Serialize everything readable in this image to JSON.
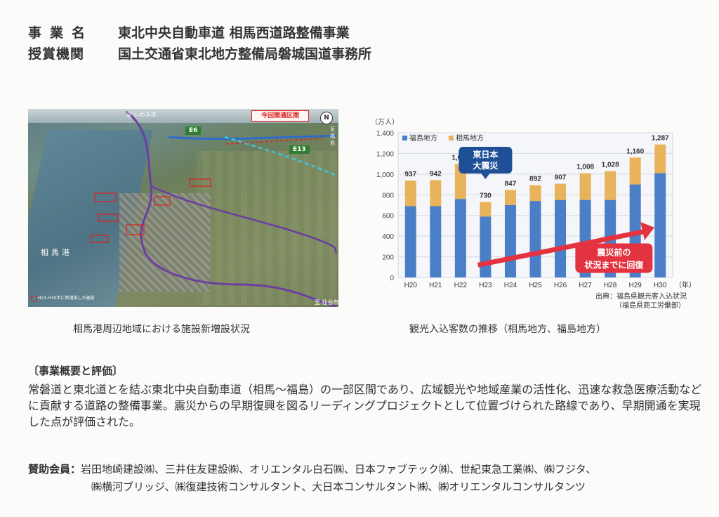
{
  "header": {
    "project_label": "事業名",
    "project_name": "東北中央自動車道 相馬西道路整備事業",
    "award_label": "授賞機関",
    "award_org": "国土交通省東北地方整備局磐城国道事務所"
  },
  "photo": {
    "caption": "相馬港周辺地域における施設新増設状況",
    "to_iwaki": "至 いわき市",
    "to_fukushima": "至 福島",
    "to_sendai": "至 仙台市",
    "port_label": "相馬港",
    "open_section": "今回開通区間",
    "e6": "E6",
    "e13": "E13",
    "legend": "H23-H30年に新増設した施設",
    "north": "N"
  },
  "chart": {
    "caption": "観光入込客数の推移（相馬地方、福島地方）",
    "source_line1": "出典：福島県観光客入込状況",
    "source_line2": "（福島県商工労働部）",
    "callout_quake_1": "東日本",
    "callout_quake_2": "大震災",
    "callout_recovery_1": "震災前の",
    "callout_recovery_2": "状況までに回復",
    "colors": {
      "fukushima": "#4a7fc8",
      "soma": "#e8b35a",
      "arrow": "#e33340",
      "callout": "#1f4f96"
    }
  },
  "chart_data": {
    "type": "bar",
    "stacked": true,
    "ylabel": "（万人）",
    "xlabel": "（年）",
    "ylim": [
      0,
      1400
    ],
    "yticks": [
      0,
      200,
      400,
      600,
      800,
      1000,
      1200,
      1400
    ],
    "categories": [
      "H20",
      "H21",
      "H22",
      "H23",
      "H24",
      "H25",
      "H26",
      "H27",
      "H28",
      "H29",
      "H30"
    ],
    "totals": [
      937,
      942,
      1097,
      730,
      847,
      892,
      907,
      1008,
      1028,
      1160,
      1287
    ],
    "series": [
      {
        "name": "福島地方",
        "values": [
          690,
          690,
          760,
          590,
          700,
          740,
          750,
          750,
          750,
          900,
          1010
        ]
      },
      {
        "name": "相馬地方",
        "values": [
          247,
          252,
          337,
          140,
          147,
          152,
          157,
          258,
          278,
          260,
          277
        ]
      }
    ],
    "legend_position": "top-left",
    "grid": true
  },
  "summary": {
    "title": "〔事業概要と評価〕",
    "text": "常磐道と東北道とを結ぶ東北中央自動車道（相馬～福島）の一部区間であり、広域観光や地域産業の活性化、迅速な救急医療活動などに貢献する道路の整備事業。震災からの早期復興を図るリーディングプロジェクトとして位置づけられた路線であり、早期開通を実現した点が評価された。"
  },
  "sponsors": {
    "label": "賛助会員：",
    "line1": "岩田地崎建設㈱、三井住友建設㈱、オリエンタル白石㈱、日本ファブテック㈱、世紀東急工業㈱、㈱フジタ、",
    "line2": "㈱横河ブリッジ、㈱復建技術コンサルタント、大日本コンサルタント㈱、㈱オリエンタルコンサルタンツ"
  }
}
